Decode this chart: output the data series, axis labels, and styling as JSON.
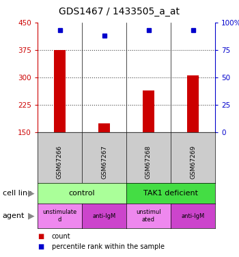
{
  "title": "GDS1467 / 1433505_a_at",
  "samples": [
    "GSM67266",
    "GSM67267",
    "GSM67268",
    "GSM67269"
  ],
  "bar_values": [
    375,
    175,
    265,
    305
  ],
  "bar_base": 150,
  "dot_values": [
    93,
    88,
    93,
    93
  ],
  "ylim_left": [
    150,
    450
  ],
  "ylim_right": [
    0,
    100
  ],
  "yticks_left": [
    150,
    225,
    300,
    375,
    450
  ],
  "yticks_right": [
    0,
    25,
    50,
    75,
    100
  ],
  "bar_color": "#cc0000",
  "dot_color": "#0000cc",
  "cell_line_labels": [
    "control",
    "TAK1 deficient"
  ],
  "cell_line_colors": [
    "#aaff99",
    "#44dd44"
  ],
  "cell_line_spans": [
    [
      0,
      2
    ],
    [
      2,
      4
    ]
  ],
  "agent_labels": [
    "unstimulate\nd",
    "anti-IgM",
    "unstimul\nated",
    "anti-IgM"
  ],
  "agent_colors": [
    "#ee88ee",
    "#cc44cc",
    "#ee88ee",
    "#cc44cc"
  ],
  "sample_box_color": "#cccccc",
  "grid_color": "#444444",
  "left_label_color": "#cc0000",
  "right_label_color": "#0000cc",
  "legend_count": "count",
  "legend_pct": "percentile rank within the sample",
  "annotation_cell_line": "cell line",
  "annotation_agent": "agent"
}
